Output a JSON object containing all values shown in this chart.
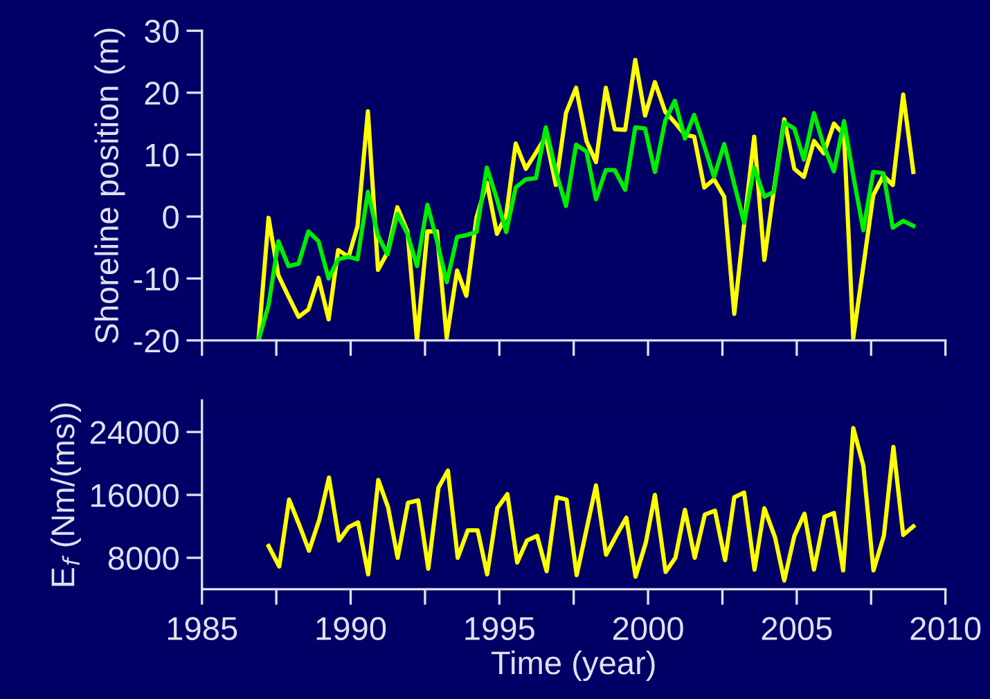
{
  "chart_data": [
    {
      "type": "line",
      "ylabel": "Shoreline position (m)",
      "x": [
        1986.9,
        1987.24,
        1987.57,
        1987.91,
        1988.25,
        1988.58,
        1988.92,
        1989.26,
        1989.58,
        1989.93,
        1990.23,
        1990.58,
        1990.92,
        1991.24,
        1991.57,
        1991.91,
        1992.23,
        1992.58,
        1992.9,
        1993.23,
        1993.58,
        1993.89,
        1994.23,
        1994.58,
        1994.92,
        1995.23,
        1995.55,
        1995.89,
        1996.23,
        1996.56,
        1996.9,
        1997.24,
        1997.58,
        1997.93,
        1998.25,
        1998.58,
        1998.88,
        1999.23,
        1999.57,
        1999.9,
        2000.23,
        2000.58,
        2000.9,
        2001.24,
        2001.55,
        2001.89,
        2002.22,
        2002.56,
        2002.9,
        2003.23,
        2003.57,
        2003.91,
        2004.23,
        2004.58,
        2004.92,
        2005.24,
        2005.58,
        2005.91,
        2006.25,
        2006.59,
        2006.9,
        2007.24,
        2007.57,
        2007.91,
        2008.23,
        2008.58,
        2008.92
      ],
      "series": [
        {
          "color": "#ffff00",
          "values": [
            -20.0,
            -0.2,
            -9.5,
            -12.9,
            -16.2,
            -15.0,
            -9.9,
            -16.6,
            -5.4,
            -6.5,
            -1.6,
            17.0,
            -8.6,
            -5.8,
            1.5,
            -2.4,
            -20.0,
            -2.4,
            -2.4,
            -19.6,
            -8.7,
            -12.8,
            -0.2,
            5.5,
            -2.8,
            0.2,
            11.8,
            7.7,
            10.3,
            12.9,
            5.1,
            16.7,
            20.8,
            12.2,
            8.8,
            20.8,
            14.1,
            14.0,
            25.3,
            16.3,
            21.7,
            16.9,
            15.2,
            13.2,
            12.9,
            4.7,
            6.0,
            3.2,
            -15.7,
            -1.3,
            12.9,
            -7.0,
            4.3,
            15.7,
            7.7,
            6.4,
            12.2,
            10.2,
            15.0,
            13.2,
            -19.6,
            -8.0,
            3.4,
            6.6,
            5.1,
            19.7,
            7.2
          ]
        },
        {
          "color": "#00ee00",
          "values": [
            -20.0,
            -14.3,
            -4.0,
            -8.0,
            -7.6,
            -2.4,
            -4.0,
            -10.0,
            -6.9,
            -6.5,
            -6.9,
            4.0,
            -3.1,
            -6.1,
            0.4,
            -2.8,
            -8.0,
            1.9,
            -3.9,
            -10.6,
            -3.3,
            -3.0,
            -2.5,
            7.9,
            2.8,
            -2.5,
            4.7,
            6.0,
            6.2,
            14.4,
            7.3,
            1.7,
            11.6,
            10.5,
            2.8,
            7.5,
            7.5,
            4.3,
            14.4,
            14.2,
            7.2,
            15.5,
            18.7,
            12.6,
            16.4,
            11.4,
            6.4,
            11.7,
            5.2,
            -1.0,
            7.9,
            3.2,
            4.0,
            15.2,
            14.2,
            9.2,
            16.7,
            11.4,
            7.3,
            15.4,
            6.6,
            -2.2,
            7.2,
            7.0,
            -1.8,
            -0.7,
            -1.5
          ]
        }
      ],
      "xlim": [
        1985,
        2010
      ],
      "xticks": [
        1985,
        1987.5,
        1990,
        1992.5,
        1995,
        1997.5,
        2000,
        2002.5,
        2005,
        2007.5,
        2010
      ],
      "ylim": [
        -20,
        30
      ],
      "yticks": [
        -20,
        -10,
        0,
        10,
        20,
        30
      ],
      "tick_labels": "y",
      "grid": false,
      "legend": false
    },
    {
      "type": "line",
      "xlabel": "Time (year)",
      "ylabel": "E$_{f}$ (Nm/(ms))",
      "x": [
        1987.24,
        1987.6,
        1987.93,
        1988.27,
        1988.6,
        1988.95,
        1989.27,
        1989.61,
        1989.93,
        1990.25,
        1990.59,
        1990.93,
        1991.26,
        1991.58,
        1991.93,
        1992.27,
        1992.61,
        1992.95,
        1993.27,
        1993.6,
        1993.94,
        1994.27,
        1994.59,
        1994.93,
        1995.27,
        1995.6,
        1995.93,
        1996.27,
        1996.59,
        1996.93,
        1997.26,
        1997.6,
        1998.25,
        1998.59,
        1998.93,
        1999.27,
        1999.58,
        1999.93,
        2000.23,
        2000.59,
        2000.92,
        2001.24,
        2001.57,
        2001.91,
        2002.25,
        2002.59,
        2002.9,
        2003.23,
        2003.58,
        2003.91,
        2004.27,
        2004.58,
        2004.92,
        2005.26,
        2005.58,
        2005.93,
        2006.25,
        2006.56,
        2006.9,
        2007.24,
        2007.58,
        2007.93,
        2008.25,
        2008.58,
        2008.92
      ],
      "series": [
        {
          "color": "#ffff00",
          "values": [
            9500,
            6900,
            15400,
            12200,
            8900,
            12900,
            18200,
            10200,
            11900,
            12500,
            5900,
            17900,
            14400,
            8000,
            15000,
            15300,
            6600,
            16900,
            19100,
            8000,
            11500,
            11500,
            5900,
            14300,
            16100,
            7400,
            10200,
            10800,
            6300,
            15700,
            15400,
            5800,
            17200,
            8400,
            10800,
            13100,
            5600,
            10000,
            16000,
            6200,
            8000,
            14100,
            8000,
            13500,
            14000,
            7700,
            15700,
            16300,
            6500,
            14300,
            10600,
            5100,
            10800,
            13600,
            6500,
            13200,
            13700,
            6400,
            24500,
            19700,
            6400,
            10800,
            22100,
            10900,
            12000
          ]
        }
      ],
      "xlim": [
        1985,
        2010
      ],
      "xticks": [
        1985,
        {
          "value": 1987.5,
          "label": null
        },
        1990,
        {
          "value": 1992.5,
          "label": null
        },
        1995,
        {
          "value": 1997.5,
          "label": null
        },
        2000,
        {
          "value": 2002.5,
          "label": null
        },
        2005,
        {
          "value": 2007.5,
          "label": null
        },
        2010
      ],
      "ylim": [
        4000,
        28000
      ],
      "yticks": [
        8000,
        16000,
        24000
      ],
      "grid": false,
      "legend": false
    }
  ]
}
